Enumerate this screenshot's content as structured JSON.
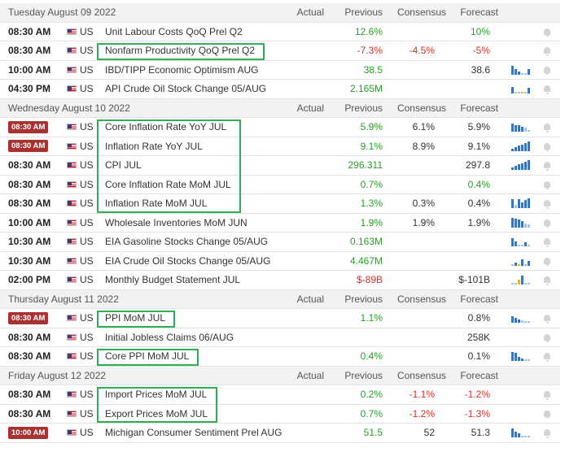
{
  "columns": {
    "actual": "Actual",
    "previous": "Previous",
    "consensus": "Consensus",
    "forecast": "Forecast"
  },
  "colors": {
    "positive": "#2a9d2a",
    "negative": "#d0312d",
    "highlight": "#2fae52",
    "high_impact_badge": "#a83232"
  },
  "days": [
    {
      "title": "Tuesday August 09 2022",
      "rows": [
        {
          "time": "08:30 AM",
          "high_impact": false,
          "country": "US",
          "event": "Unit Labour Costs QoQ Prel Q2",
          "actual": "",
          "previous": "12.6%",
          "previous_color": "green",
          "consensus": "",
          "consensus_color": "plain",
          "forecast": "10%",
          "forecast_color": "green",
          "spark": null
        },
        {
          "time": "08:30 AM",
          "high_impact": false,
          "country": "US",
          "event": "Nonfarm Productivity QoQ Prel Q2",
          "actual": "",
          "previous": "-7.3%",
          "previous_color": "red",
          "consensus": "-4.5%",
          "consensus_color": "red",
          "forecast": "-5%",
          "forecast_color": "red",
          "spark": null
        },
        {
          "time": "10:00 AM",
          "high_impact": false,
          "country": "US",
          "event": "IBD/TIPP Economic Optimism AUG",
          "actual": "",
          "previous": "38.5",
          "previous_color": "green",
          "consensus": "",
          "consensus_color": "plain",
          "forecast": "38.6",
          "forecast_color": "plain",
          "spark": "bars-a"
        },
        {
          "time": "04:30 PM",
          "high_impact": false,
          "country": "US",
          "event": "API Crude Oil Stock Change 05/AUG",
          "actual": "",
          "previous": "2.165M",
          "previous_color": "green",
          "consensus": "",
          "consensus_color": "plain",
          "forecast": "",
          "forecast_color": "plain",
          "spark": "dots-a"
        }
      ]
    },
    {
      "title": "Wednesday August 10 2022",
      "rows": [
        {
          "time": "08:30 AM",
          "high_impact": true,
          "country": "US",
          "event": "Core Inflation Rate YoY JUL",
          "actual": "",
          "previous": "5.9%",
          "previous_color": "green",
          "consensus": "6.1%",
          "consensus_color": "plain",
          "forecast": "5.9%",
          "forecast_color": "plain",
          "spark": "bars-b"
        },
        {
          "time": "08:30 AM",
          "high_impact": true,
          "country": "US",
          "event": "Inflation Rate YoY JUL",
          "actual": "",
          "previous": "9.1%",
          "previous_color": "green",
          "consensus": "8.9%",
          "consensus_color": "plain",
          "forecast": "9.1%",
          "forecast_color": "plain",
          "spark": "bars-c"
        },
        {
          "time": "08:30 AM",
          "high_impact": false,
          "country": "US",
          "event": "CPI JUL",
          "actual": "",
          "previous": "296.311",
          "previous_color": "green",
          "consensus": "",
          "consensus_color": "plain",
          "forecast": "297.8",
          "forecast_color": "plain",
          "spark": "bars-c"
        },
        {
          "time": "08:30 AM",
          "high_impact": false,
          "country": "US",
          "event": "Core Inflation Rate MoM JUL",
          "actual": "",
          "previous": "0.7%",
          "previous_color": "green",
          "consensus": "",
          "consensus_color": "plain",
          "forecast": "0.4%",
          "forecast_color": "green",
          "spark": null
        },
        {
          "time": "08:30 AM",
          "high_impact": false,
          "country": "US",
          "event": "Inflation Rate MoM JUL",
          "actual": "",
          "previous": "1.3%",
          "previous_color": "green",
          "consensus": "0.3%",
          "consensus_color": "plain",
          "forecast": "0.4%",
          "forecast_color": "plain",
          "spark": "bars-d"
        },
        {
          "time": "10:00 AM",
          "high_impact": false,
          "country": "US",
          "event": "Wholesale Inventories MoM JUN",
          "actual": "",
          "previous": "1.9%",
          "previous_color": "green",
          "consensus": "1.9%",
          "consensus_color": "plain",
          "forecast": "1.9%",
          "forecast_color": "plain",
          "spark": "bars-e"
        },
        {
          "time": "10:30 AM",
          "high_impact": false,
          "country": "US",
          "event": "EIA Gasoline Stocks Change 05/AUG",
          "actual": "",
          "previous": "0.163M",
          "previous_color": "green",
          "consensus": "",
          "consensus_color": "plain",
          "forecast": "",
          "forecast_color": "plain",
          "spark": "dots-b"
        },
        {
          "time": "10:30 AM",
          "high_impact": false,
          "country": "US",
          "event": "EIA Crude Oil Stocks Change 05/AUG",
          "actual": "",
          "previous": "4.467M",
          "previous_color": "green",
          "consensus": "",
          "consensus_color": "plain",
          "forecast": "",
          "forecast_color": "plain",
          "spark": "dots-c"
        },
        {
          "time": "02:00 PM",
          "high_impact": false,
          "country": "US",
          "event": "Monthly Budget Statement JUL",
          "actual": "",
          "previous": "$-89B",
          "previous_color": "red",
          "consensus": "",
          "consensus_color": "plain",
          "forecast": "$-101B",
          "forecast_color": "plain",
          "spark": "dots-d"
        }
      ]
    },
    {
      "title": "Thursday August 11 2022",
      "rows": [
        {
          "time": "08:30 AM",
          "high_impact": true,
          "country": "US",
          "event": "PPI MoM JUL",
          "actual": "",
          "previous": "1.1%",
          "previous_color": "green",
          "consensus": "",
          "consensus_color": "plain",
          "forecast": "0.8%",
          "forecast_color": "plain",
          "spark": "bars-f"
        },
        {
          "time": "08:30 AM",
          "high_impact": false,
          "country": "US",
          "event": "Initial Jobless Claims 06/AUG",
          "actual": "",
          "previous": "",
          "previous_color": "plain",
          "consensus": "",
          "consensus_color": "plain",
          "forecast": "258K",
          "forecast_color": "plain",
          "spark": null
        },
        {
          "time": "08:30 AM",
          "high_impact": false,
          "country": "US",
          "event": "Core PPI MoM JUL",
          "actual": "",
          "previous": "0.4%",
          "previous_color": "green",
          "consensus": "",
          "consensus_color": "plain",
          "forecast": "0.1%",
          "forecast_color": "plain",
          "spark": "bars-g"
        }
      ]
    },
    {
      "title": "Friday August 12 2022",
      "rows": [
        {
          "time": "08:30 AM",
          "high_impact": false,
          "country": "US",
          "event": "Import Prices MoM JUL",
          "actual": "",
          "previous": "0.2%",
          "previous_color": "green",
          "consensus": "-1.1%",
          "consensus_color": "red",
          "forecast": "-1.2%",
          "forecast_color": "red",
          "spark": null
        },
        {
          "time": "08:30 AM",
          "high_impact": false,
          "country": "US",
          "event": "Export Prices MoM JUL",
          "actual": "",
          "previous": "0.7%",
          "previous_color": "green",
          "consensus": "-1.2%",
          "consensus_color": "red",
          "forecast": "-1.3%",
          "forecast_color": "red",
          "spark": null
        },
        {
          "time": "10:00 AM",
          "high_impact": true,
          "country": "US",
          "event": "Michigan Consumer Sentiment Prel AUG",
          "actual": "",
          "previous": "51.5",
          "previous_color": "green",
          "consensus": "52",
          "consensus_color": "plain",
          "forecast": "51.3",
          "forecast_color": "plain",
          "spark": "bars-h"
        }
      ]
    }
  ],
  "highlight_groups": [
    {
      "name": "nonfarm-productivity",
      "day": 0,
      "rows": [
        1
      ]
    },
    {
      "name": "inflation-cpi-group",
      "day": 1,
      "rows": [
        0,
        1,
        2,
        3,
        4
      ]
    },
    {
      "name": "ppi-mom",
      "day": 2,
      "rows": [
        0
      ]
    },
    {
      "name": "core-ppi-mom",
      "day": 2,
      "rows": [
        2
      ]
    },
    {
      "name": "import-export-prices",
      "day": 3,
      "rows": [
        0,
        1
      ]
    }
  ]
}
